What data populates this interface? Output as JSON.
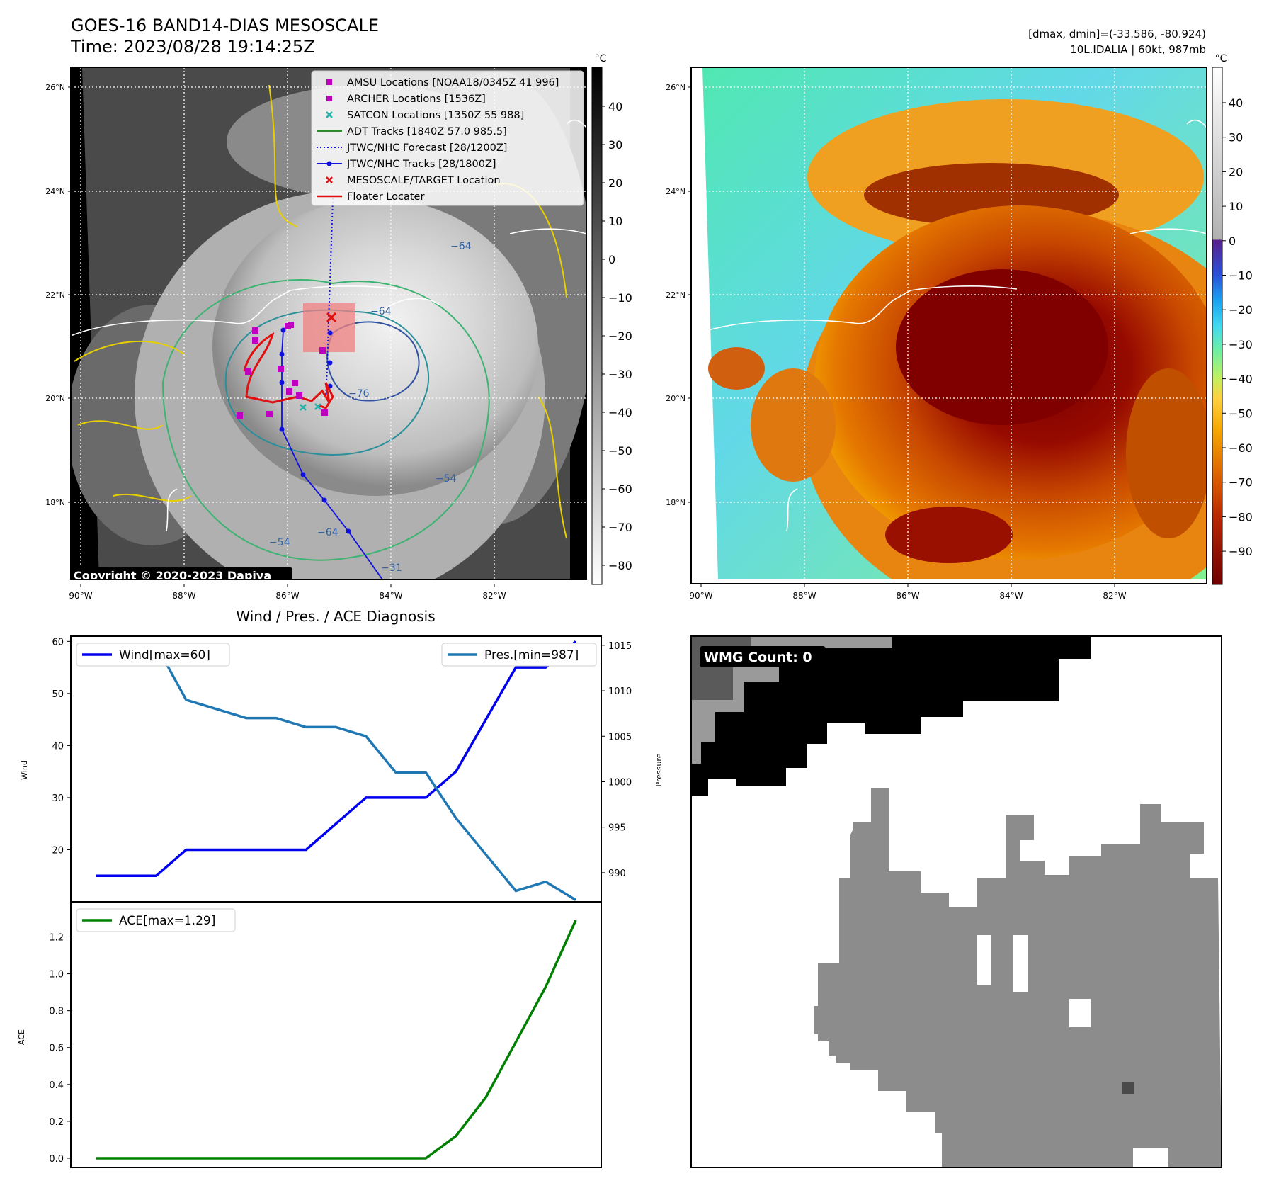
{
  "header": {
    "title_line1": "GOES-16 BAND14-DIAS MESOSCALE",
    "title_line2": "Time: 2023/08/28 19:14:25Z",
    "right_line1": "[dmax, dmin]=(-33.586, -80.924)",
    "right_line2": "10L.IDALIA | 60kt, 987mb"
  },
  "map_panels": {
    "lat_labels": [
      "26°N",
      "24°N",
      "22°N",
      "20°N",
      "18°N"
    ],
    "lon_labels": [
      "90°W",
      "88°W",
      "86°W",
      "84°W",
      "82°W"
    ],
    "unit": "°C",
    "copyright": "Copyright © 2020-2023 Dapiya",
    "gray_colorbar_ticks": [
      "40",
      "30",
      "20",
      "10",
      "0",
      "−10",
      "−20",
      "−30",
      "−40",
      "−50",
      "−60",
      "−70",
      "−80"
    ],
    "color_colorbar_ticks": [
      "40",
      "30",
      "20",
      "10",
      "0",
      "−10",
      "−20",
      "−30",
      "−40",
      "−50",
      "−60",
      "−70",
      "−80",
      "−90"
    ],
    "contour_labels": [
      "−64",
      "−76",
      "−64",
      "−54",
      "−64",
      "−54",
      "−31"
    ],
    "legend": [
      {
        "label": "AMSU Locations [NOAA18/0345Z 41 996]",
        "marker": "square",
        "color": "#c000c0"
      },
      {
        "label": "ARCHER Locations [1536Z]",
        "marker": "square",
        "color": "#c000c0"
      },
      {
        "label": "SATCON Locations [1350Z 55 988]",
        "marker": "x",
        "color": "#20b2aa"
      },
      {
        "label": "ADT Tracks [1840Z 57.0 985.5]",
        "marker": "line",
        "color": "#2e8b2e"
      },
      {
        "label": "JTWC/NHC Forecast [28/1200Z]",
        "marker": "dotted",
        "color": "#1010e0"
      },
      {
        "label": "JTWC/NHC Tracks [28/1800Z]",
        "marker": "line-dot",
        "color": "#1010e0"
      },
      {
        "label": "MESOSCALE/TARGET Location",
        "marker": "x",
        "color": "#e01010"
      },
      {
        "label": "Floater Locater",
        "marker": "line",
        "color": "#e01010"
      }
    ]
  },
  "chart_data": [
    {
      "type": "line",
      "title": "Wind / Pres. / ACE Diagnosis",
      "ylabel": "Wind",
      "y2label": "Pressure",
      "ylim": [
        10,
        61
      ],
      "y2lim": [
        986.8,
        1016
      ],
      "yticks": [
        20,
        30,
        40,
        50,
        60
      ],
      "y2ticks": [
        990,
        995,
        1000,
        1005,
        1010,
        1015
      ],
      "x": [
        0,
        1,
        2,
        3,
        4,
        5,
        6,
        7,
        8,
        9,
        10,
        11,
        12,
        13,
        14,
        15,
        16
      ],
      "series": [
        {
          "name": "Wind[max=60]",
          "color": "#0000ee",
          "values": [
            15,
            15,
            15,
            20,
            20,
            20,
            20,
            20,
            25,
            30,
            30,
            30,
            35,
            45,
            55,
            55,
            60
          ]
        },
        {
          "name": "Pres.[min=987]",
          "color": "#1f77b4",
          "axis": "right",
          "values": [
            1015,
            1015,
            1015,
            1009,
            1008,
            1007,
            1007,
            1006,
            1006,
            1005,
            1001,
            1001,
            996,
            992,
            988,
            989,
            987
          ]
        }
      ]
    },
    {
      "type": "line",
      "ylabel": "ACE",
      "ylim": [
        -0.05,
        1.39
      ],
      "yticks": [
        0.0,
        0.2,
        0.4,
        0.6,
        0.8,
        1.0,
        1.2
      ],
      "ytick_labels": [
        "0.0",
        "0.2",
        "0.4",
        "0.6",
        "0.8",
        "1.0",
        "1.2"
      ],
      "x": [
        0,
        1,
        2,
        3,
        4,
        5,
        6,
        7,
        8,
        9,
        10,
        11,
        12,
        13,
        14,
        15,
        16
      ],
      "series": [
        {
          "name": "ACE[max=1.29]",
          "color": "#008000",
          "values": [
            0,
            0,
            0,
            0,
            0,
            0,
            0,
            0,
            0,
            0,
            0,
            0,
            0.12,
            0.33,
            0.63,
            0.93,
            1.29
          ]
        }
      ]
    }
  ],
  "wmg": {
    "badge": "WMG Count: 0"
  }
}
